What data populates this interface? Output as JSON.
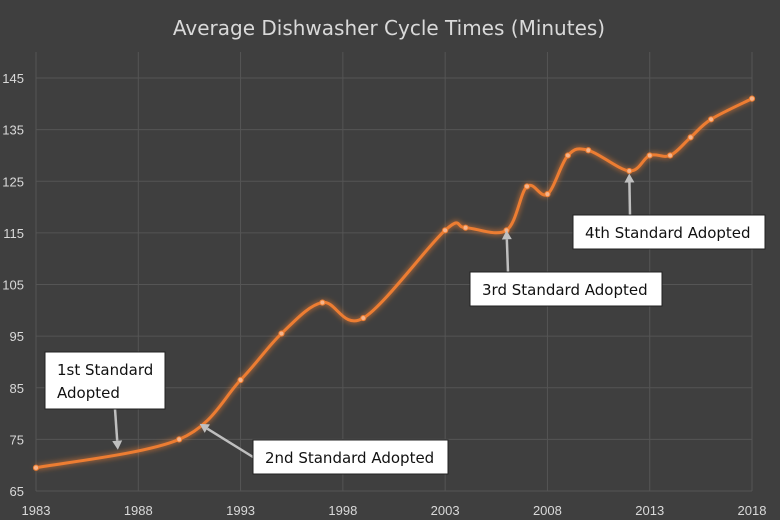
{
  "chart_data": {
    "type": "line",
    "title": "Average Dishwasher Cycle Times (Minutes)",
    "xlabel": "",
    "ylabel": "",
    "xlim": [
      1983,
      2018
    ],
    "ylim": [
      65,
      150
    ],
    "x_ticks": [
      "1983",
      "1988",
      "1993",
      "1998",
      "2003",
      "2008",
      "2013",
      "2018"
    ],
    "y_ticks": [
      "65",
      "75",
      "85",
      "95",
      "105",
      "115",
      "125",
      "135",
      "145"
    ],
    "grid": true,
    "legend": "none",
    "series": [
      {
        "color": "#ed7d31",
        "x": [
          1983,
          1990,
          1993,
          1995,
          1997,
          1999,
          2003,
          2004,
          2006,
          2007,
          2008,
          2009,
          2010,
          2012,
          2013,
          2014,
          2015,
          2016,
          2018
        ],
        "y": [
          69.5,
          75,
          86.5,
          95.5,
          101.5,
          98.5,
          115.5,
          116,
          115.5,
          124,
          122.5,
          130,
          131,
          127,
          130,
          130,
          133.5,
          137,
          141
        ]
      }
    ],
    "annotations": [
      {
        "lines": [
          "1st Standard",
          "Adopted"
        ],
        "target": [
          1987,
          73
        ]
      },
      {
        "lines": [
          "2nd Standard Adopted"
        ],
        "target": [
          1991,
          78
        ]
      },
      {
        "lines": [
          "3rd Standard Adopted"
        ],
        "target": [
          2006,
          115.5
        ]
      },
      {
        "lines": [
          "4th Standard Adopted"
        ],
        "target": [
          2012,
          126.5
        ]
      }
    ]
  }
}
